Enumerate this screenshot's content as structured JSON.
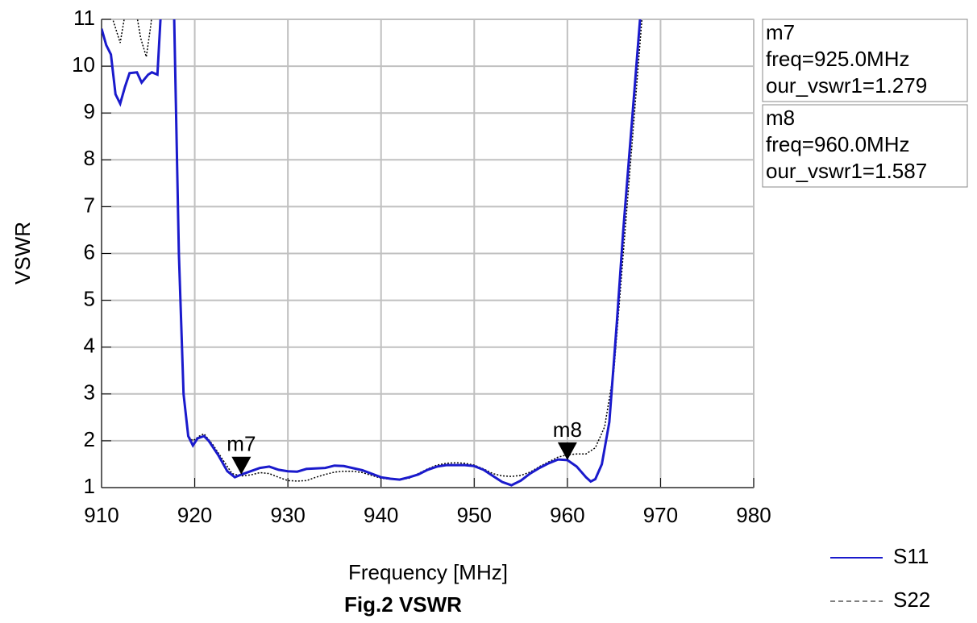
{
  "chart_data": {
    "type": "line",
    "title": "Fig.2 VSWR",
    "x_label": "Frequency [MHz]",
    "y_label": "VSWR",
    "xlim": [
      910,
      980
    ],
    "ylim": [
      1,
      11
    ],
    "xticks": [
      910,
      920,
      930,
      940,
      950,
      960,
      970,
      980
    ],
    "yticks": [
      1,
      2,
      3,
      4,
      5,
      6,
      7,
      8,
      9,
      10,
      11
    ],
    "grid": true,
    "series": [
      {
        "name": "S11",
        "color": "#1a1acc",
        "dash": "solid",
        "x": [
          910,
          910.5,
          911,
          911.5,
          912,
          912.5,
          913,
          913.8,
          914.3,
          915,
          915.4,
          916,
          916.6,
          917.4,
          917.8,
          918.3,
          918.8,
          919.3,
          919.8,
          920.3,
          921,
          921.5,
          922.5,
          923.5,
          924.3,
          925,
          926,
          927,
          928,
          929,
          930,
          931,
          932,
          934,
          935,
          936,
          938,
          940,
          941,
          942,
          943,
          944,
          945,
          946,
          947,
          948,
          949,
          950,
          951,
          952,
          953,
          954,
          955,
          956,
          957,
          958,
          959,
          960,
          961,
          962,
          962.5,
          963,
          963.7,
          964.5,
          965.3,
          966,
          967,
          968
        ],
        "values": [
          10.8,
          10.45,
          10.25,
          9.4,
          9.2,
          9.55,
          9.85,
          9.87,
          9.65,
          9.82,
          9.87,
          9.82,
          12,
          12,
          11,
          6,
          3,
          2.1,
          1.9,
          2.05,
          2.1,
          2.0,
          1.7,
          1.35,
          1.22,
          1.279,
          1.35,
          1.42,
          1.45,
          1.38,
          1.35,
          1.34,
          1.4,
          1.42,
          1.47,
          1.46,
          1.37,
          1.22,
          1.19,
          1.17,
          1.22,
          1.28,
          1.38,
          1.45,
          1.48,
          1.48,
          1.48,
          1.46,
          1.38,
          1.25,
          1.12,
          1.05,
          1.15,
          1.3,
          1.42,
          1.52,
          1.6,
          1.587,
          1.45,
          1.22,
          1.13,
          1.18,
          1.5,
          2.4,
          4.5,
          6.5,
          9,
          11.5
        ]
      },
      {
        "name": "S22",
        "color": "#000000",
        "dash": "dotted",
        "x": [
          910.8,
          911.2,
          912,
          912.6,
          913.1,
          913.6,
          914.2,
          914.8,
          915.3,
          915.8,
          917.7,
          918.3,
          918.8,
          919.3,
          919.8,
          920.5,
          921,
          922,
          923,
          924,
          925,
          926,
          927,
          928,
          929,
          930,
          931,
          932,
          933,
          934,
          935,
          936,
          937,
          938,
          939,
          940,
          941,
          942,
          943,
          944,
          945,
          946,
          947,
          948,
          949,
          950,
          951,
          952,
          953,
          954,
          955,
          956,
          957,
          958,
          959,
          960,
          961,
          962,
          963,
          964,
          965,
          966,
          967,
          968,
          968.7
        ],
        "values": [
          12,
          11,
          10.5,
          11.2,
          12,
          11.3,
          10.6,
          10.2,
          10.9,
          12,
          12,
          6,
          3,
          2.1,
          2.0,
          2.1,
          2.15,
          1.9,
          1.6,
          1.3,
          1.25,
          1.27,
          1.32,
          1.3,
          1.22,
          1.15,
          1.14,
          1.15,
          1.22,
          1.28,
          1.33,
          1.35,
          1.35,
          1.32,
          1.26,
          1.2,
          1.18,
          1.17,
          1.2,
          1.3,
          1.4,
          1.48,
          1.52,
          1.53,
          1.52,
          1.48,
          1.4,
          1.3,
          1.25,
          1.24,
          1.26,
          1.33,
          1.45,
          1.55,
          1.65,
          1.7,
          1.72,
          1.72,
          1.85,
          2.3,
          3.5,
          6,
          8.5,
          11,
          12
        ]
      }
    ],
    "markers": [
      {
        "label": "m7",
        "x": 925,
        "y": 1.279,
        "lines": [
          "m7",
          "freq=925.0MHz",
          "our_vswr1=1.279"
        ]
      },
      {
        "label": "m8",
        "x": 960,
        "y": 1.587,
        "lines": [
          "m8",
          "freq=960.0MHz",
          "our_vswr1=1.587"
        ]
      }
    ]
  }
}
